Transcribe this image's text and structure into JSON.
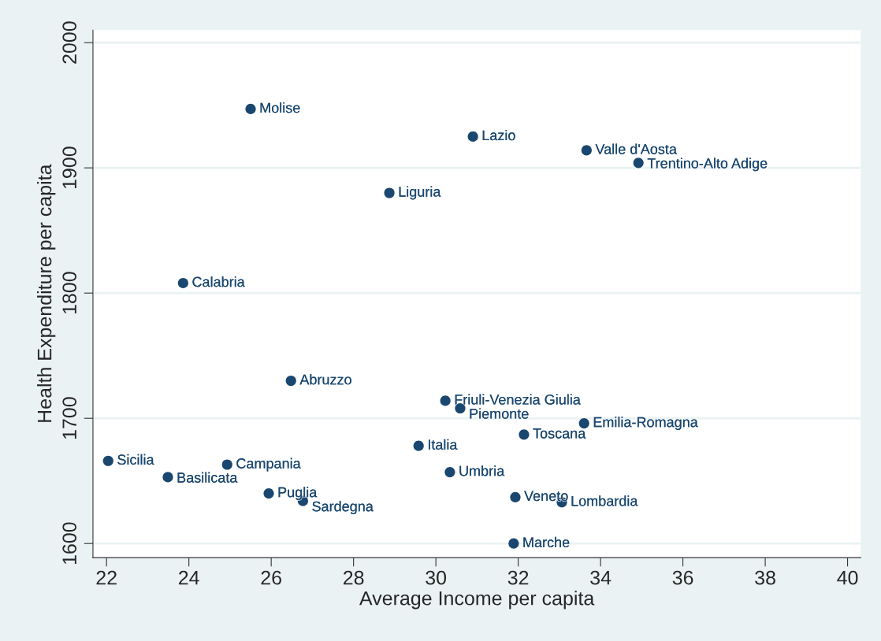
{
  "chart_data": {
    "type": "scatter",
    "xlabel": "Average Income per capita",
    "ylabel": "Health Expenditure per capita",
    "x": [
      25.5,
      30.9,
      33.66,
      34.92,
      28.87,
      23.86,
      26.48,
      30.23,
      30.59,
      33.6,
      32.14,
      29.58,
      22.04,
      24.93,
      23.49,
      30.34,
      25.94,
      26.77,
      31.93,
      33.06,
      31.89
    ],
    "series": [
      {
        "color": "#1a476f",
        "values": [
          1947,
          1925,
          1914,
          1904,
          1880,
          1808,
          1730,
          1714,
          1708,
          1696,
          1687,
          1678,
          1666,
          1663,
          1653,
          1657,
          1640,
          1634,
          1637,
          1633,
          1600
        ]
      }
    ],
    "annotations": [
      {
        "text": "Molise",
        "x": 25.5,
        "y": 1947
      },
      {
        "text": "Lazio",
        "x": 30.9,
        "y": 1925
      },
      {
        "text": "Valle d'Aosta",
        "x": 33.66,
        "y": 1914
      },
      {
        "text": "Trentino-Alto Adige",
        "x": 34.92,
        "y": 1904
      },
      {
        "text": "Liguria",
        "x": 28.87,
        "y": 1880
      },
      {
        "text": "Calabria",
        "x": 23.86,
        "y": 1808
      },
      {
        "text": "Abruzzo",
        "x": 26.48,
        "y": 1730
      },
      {
        "text": "Friuli-Venezia Giulia",
        "x": 30.23,
        "y": 1714
      },
      {
        "text": "Piemonte",
        "x": 30.59,
        "y": 1708
      },
      {
        "text": "Emilia-Romagna",
        "x": 33.6,
        "y": 1696
      },
      {
        "text": "Toscana",
        "x": 32.14,
        "y": 1687
      },
      {
        "text": "Italia",
        "x": 29.58,
        "y": 1678
      },
      {
        "text": "Sicilia",
        "x": 22.04,
        "y": 1666
      },
      {
        "text": "Campania",
        "x": 24.93,
        "y": 1663
      },
      {
        "text": "Basilicata",
        "x": 23.49,
        "y": 1653
      },
      {
        "text": "Umbria",
        "x": 30.34,
        "y": 1657
      },
      {
        "text": "Puglia",
        "x": 25.94,
        "y": 1640
      },
      {
        "text": "Sardegna",
        "x": 26.77,
        "y": 1634
      },
      {
        "text": "Veneto",
        "x": 31.93,
        "y": 1637
      },
      {
        "text": "Lombardia",
        "x": 33.06,
        "y": 1633
      },
      {
        "text": "Marche",
        "x": 31.89,
        "y": 1600
      }
    ],
    "xlim": [
      21.67,
      40.32
    ],
    "xticks": [
      22,
      24,
      26,
      28,
      30,
      32,
      34,
      36,
      38,
      40
    ],
    "ylim": [
      1588.7,
      2010
    ],
    "yticks": [
      1600,
      1700,
      1800,
      1900,
      2000
    ],
    "grid": "y",
    "marker": "circle",
    "legend": false
  }
}
